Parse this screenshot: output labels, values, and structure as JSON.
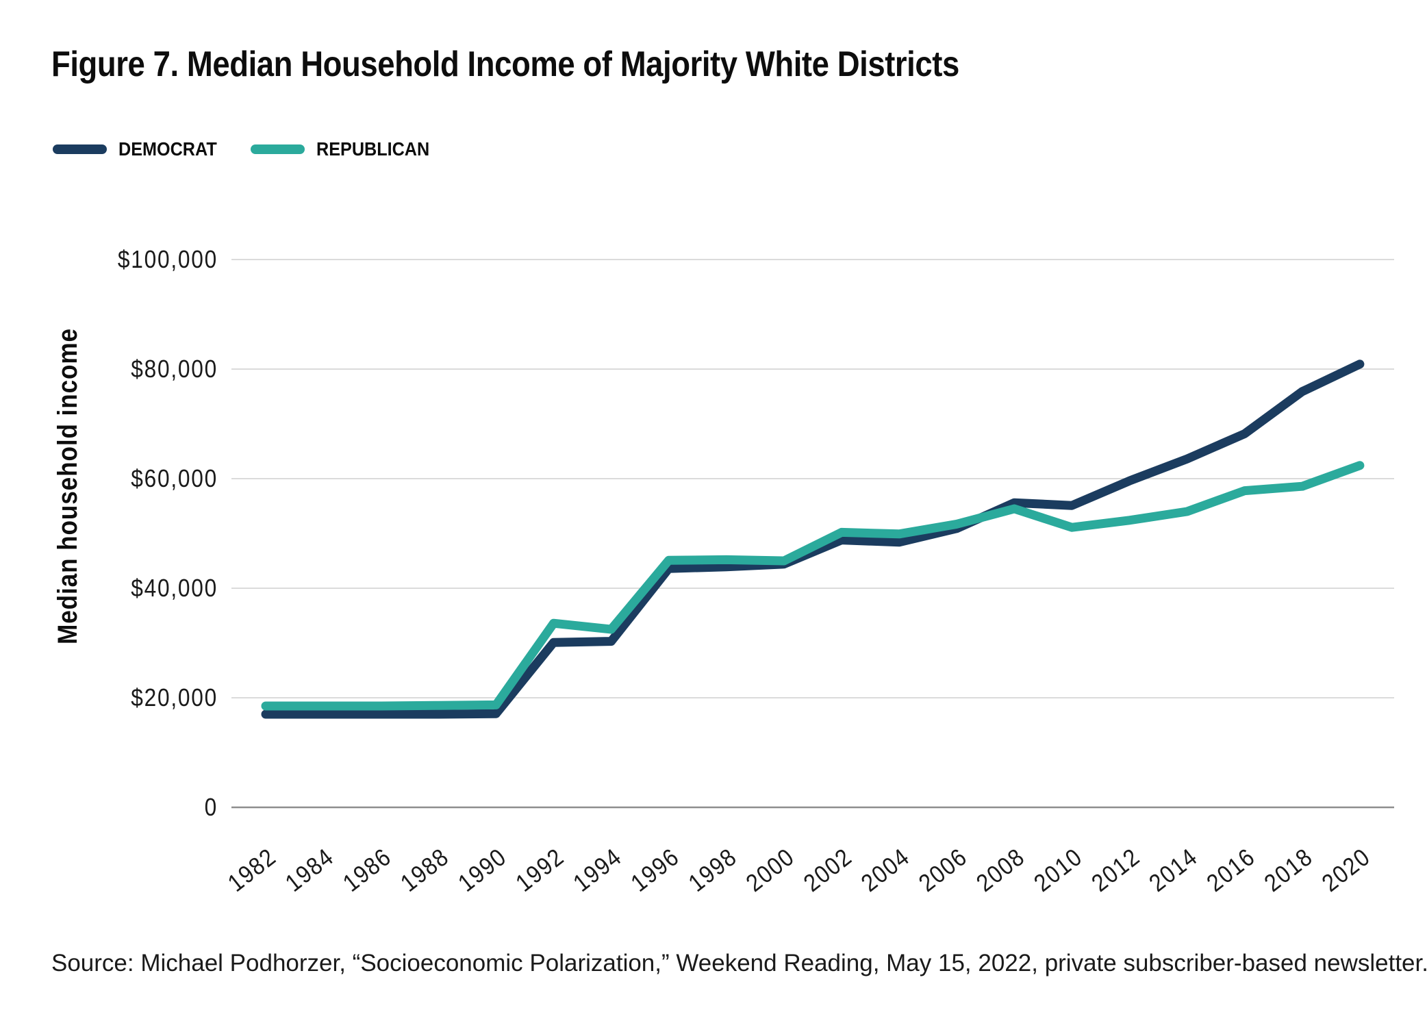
{
  "title": "Figure 7. Median Household Income of Majority White Districts",
  "legend": {
    "items": [
      {
        "label": "DEMOCRAT",
        "color": "#1b3c5f"
      },
      {
        "label": "REPUBLICAN",
        "color": "#2baa9c"
      }
    ]
  },
  "source": "Source: Michael Podhorzer, “Socioeconomic Polarization,” Weekend Reading, May 15, 2022, private subscriber-based newsletter.",
  "chart_data": {
    "type": "line",
    "title": "Figure 7. Median Household Income of Majority White Districts",
    "xlabel": "",
    "ylabel": "Median household income",
    "categories": [
      1982,
      1984,
      1986,
      1988,
      1990,
      1992,
      1994,
      1996,
      1998,
      2000,
      2002,
      2004,
      2006,
      2008,
      2010,
      2012,
      2014,
      2016,
      2018,
      2020
    ],
    "series": [
      {
        "name": "DEMOCRAT",
        "color": "#1b3c5f",
        "values": [
          17000,
          17000,
          17000,
          17000,
          17100,
          30100,
          30300,
          43600,
          43900,
          44400,
          48800,
          48400,
          50900,
          55600,
          55100,
          59600,
          63600,
          68200,
          75900,
          80900
        ]
      },
      {
        "name": "REPUBLICAN",
        "color": "#2baa9c",
        "values": [
          18500,
          18500,
          18500,
          18600,
          18700,
          33600,
          32500,
          45100,
          45200,
          45000,
          50200,
          49900,
          51700,
          54500,
          51100,
          52400,
          54000,
          57800,
          58600,
          62400
        ]
      }
    ],
    "ylim": [
      0,
      100000
    ],
    "y_tick_step": 20000,
    "y_tick_labels": [
      "0",
      "$20,000",
      "$40,000",
      "$60,000",
      "$80,000",
      "$100,000"
    ],
    "grid": "horizontal",
    "legend_position": "top-left"
  }
}
